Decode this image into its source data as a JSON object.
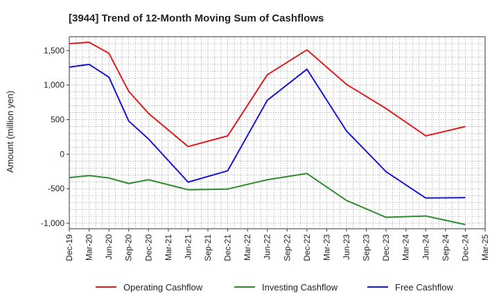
{
  "chart_data": {
    "type": "line",
    "title": "[3944]  Trend of 12-Month Moving Sum of Cashflows",
    "xlabel": "",
    "ylabel": "Amount (million yen)",
    "ylim": [
      -1080,
      1700
    ],
    "yticks": [
      -1000,
      -500,
      0,
      500,
      1000,
      1500
    ],
    "ytick_labels": [
      "-1,000",
      "-500",
      "0",
      "500",
      "1,000",
      "1,500"
    ],
    "categories": [
      "Dec-19",
      "Mar-20",
      "Jun-20",
      "Sep-20",
      "Dec-20",
      "Mar-21",
      "Jun-21",
      "Sep-21",
      "Dec-21",
      "Mar-22",
      "Jun-22",
      "Sep-22",
      "Dec-22",
      "Mar-23",
      "Jun-23",
      "Sep-23",
      "Dec-23",
      "Mar-24",
      "Jun-24",
      "Sep-24",
      "Dec-24",
      "Mar-25"
    ],
    "grid": true,
    "legend_position": "bottom",
    "series": [
      {
        "name": "Operating Cashflow",
        "color": "#e31a1c",
        "values": [
          1600,
          1620,
          1460,
          910,
          590,
          null,
          110,
          null,
          265,
          null,
          1150,
          null,
          1510,
          null,
          1010,
          null,
          660,
          null,
          265,
          null,
          400,
          null
        ]
      },
      {
        "name": "Investing Cashflow",
        "color": "#2e8b2e",
        "values": [
          -340,
          -310,
          -345,
          -425,
          -370,
          null,
          -515,
          null,
          -505,
          null,
          -370,
          null,
          -280,
          null,
          -670,
          null,
          -915,
          null,
          -895,
          null,
          -1020,
          null
        ]
      },
      {
        "name": "Free Cashflow",
        "color": "#1515d6",
        "values": [
          1260,
          1300,
          1115,
          480,
          220,
          null,
          -405,
          null,
          -240,
          null,
          780,
          null,
          1230,
          null,
          335,
          null,
          -255,
          null,
          -635,
          null,
          -630,
          null
        ]
      }
    ]
  }
}
